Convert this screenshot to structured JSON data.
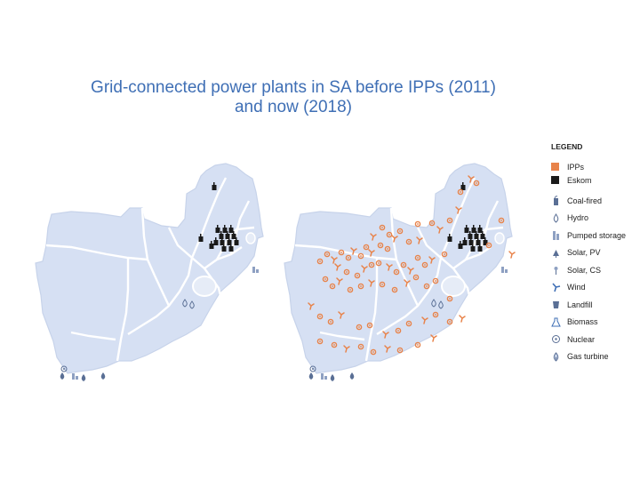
{
  "title": {
    "line1": "Grid-connected power plants in SA before IPPs (2011)",
    "line2": "and now (2018)"
  },
  "colors": {
    "land": "#d6e0f3",
    "border": "#ffffff",
    "ipp": "#e8834a",
    "eskom": "#1a1a1a",
    "title": "#3f6fb5",
    "icon": "#5a6f95"
  },
  "legend": {
    "heading": "LEGEND",
    "ownership": [
      {
        "label": "IPPs",
        "icon": "orange-square",
        "color": "#e8834a"
      },
      {
        "label": "Eskom",
        "icon": "black-square",
        "color": "#1a1a1a"
      }
    ],
    "types": [
      {
        "label": "Coal-fired",
        "icon": "coal-icon"
      },
      {
        "label": "Hydro",
        "icon": "hydro-icon"
      },
      {
        "label": "Pumped storage",
        "icon": "pumped-storage-icon"
      },
      {
        "label": "Solar, PV",
        "icon": "solar-pv-icon"
      },
      {
        "label": "Solar, CS",
        "icon": "solar-cs-icon"
      },
      {
        "label": "Wind",
        "icon": "wind-icon"
      },
      {
        "label": "Landfill",
        "icon": "landfill-icon"
      },
      {
        "label": "Biomass",
        "icon": "biomass-icon"
      },
      {
        "label": "Nuclear",
        "icon": "nuclear-icon"
      },
      {
        "label": "Gas turbine",
        "icon": "gas-turbine-icon"
      }
    ]
  },
  "maps": [
    {
      "name": "map-2011",
      "period": "before IPPs (2011)"
    },
    {
      "name": "map-2018",
      "period": "now (2018)"
    }
  ]
}
